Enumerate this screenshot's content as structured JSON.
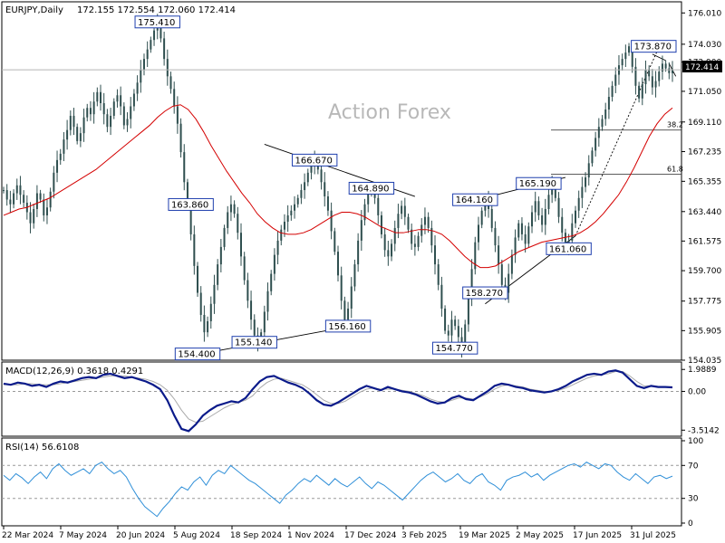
{
  "header": {
    "symbol": "EURJPY,Daily",
    "ohlc": "172.155 172.554 172.060 172.414"
  },
  "watermark": "Action Forex",
  "chart_data": [
    {
      "type": "line",
      "panel": "price",
      "ylim": [
        154.035,
        176.6
      ],
      "y_ticks": [
        "176.010",
        "174.030",
        "172.900",
        "171.050",
        "169.110",
        "167.235",
        "165.355",
        "163.440",
        "161.575",
        "159.700",
        "157.775",
        "155.905",
        "154.035"
      ],
      "current_price": "172.414",
      "x_labels": [
        "22 Mar 2024",
        "7 May 2024",
        "20 Jun 2024",
        "5 Aug 2024",
        "18 Sep 2024",
        "1 Nov 2024",
        "17 Dec 2024",
        "3 Feb 2025",
        "19 Mar 2025",
        "2 May 2025",
        "17 Jun 2025",
        "31 Jul 2025"
      ],
      "series": [
        {
          "values": [
            164.8,
            164.2,
            163.9,
            164.6,
            165.1,
            164.5,
            164.0,
            163.4,
            162.7,
            163.6,
            164.6,
            164.2,
            163.2,
            163.7,
            164.7,
            165.9,
            166.7,
            167.1,
            168.0,
            168.6,
            169.5,
            168.8,
            167.9,
            168.4,
            169.4,
            170.0,
            169.6,
            170.4,
            171.0,
            170.3,
            169.6,
            168.8,
            169.5,
            170.4,
            170.8,
            170.1,
            168.9,
            169.3,
            170.1,
            170.9,
            171.6,
            172.4,
            173.1,
            173.7,
            174.3,
            174.9,
            175.4,
            174.4,
            173.1,
            172.0,
            171.2,
            170.1,
            169.0,
            167.2,
            165.3,
            163.9,
            162.0,
            160.0,
            158.3,
            156.9,
            155.8,
            156.5,
            157.6,
            158.8,
            160.1,
            161.2,
            162.4,
            163.4,
            163.9,
            163.3,
            162.1,
            160.6,
            159.1,
            157.8,
            156.6,
            155.6,
            155.1,
            155.8,
            157.1,
            158.4,
            159.5,
            160.7,
            161.6,
            162.3,
            162.8,
            163.2,
            163.5,
            163.9,
            164.3,
            164.8,
            165.3,
            165.9,
            166.4,
            166.7,
            166.1,
            165.3,
            164.4,
            163.5,
            162.2,
            160.9,
            159.4,
            157.8,
            156.6,
            157.3,
            158.7,
            160.1,
            161.6,
            162.9,
            163.9,
            164.6,
            164.9,
            164.3,
            163.2,
            162.0,
            161.0,
            160.6,
            161.4,
            162.4,
            163.3,
            163.8,
            163.1,
            162.3,
            161.4,
            161.2,
            161.9,
            162.6,
            163.1,
            162.4,
            161.3,
            160.1,
            158.8,
            157.3,
            155.9,
            155.6,
            156.6,
            156.2,
            155.5,
            154.8,
            156.3,
            158.1,
            159.8,
            161.5,
            162.6,
            163.5,
            164.2,
            163.6,
            162.4,
            161.3,
            160.1,
            158.8,
            158.3,
            159.5,
            160.7,
            161.8,
            162.7,
            162.0,
            161.4,
            162.5,
            163.4,
            164.1,
            163.2,
            162.6,
            163.6,
            164.5,
            165.2,
            164.3,
            163.1,
            162.1,
            161.1,
            161.6,
            162.7,
            163.5,
            164.3,
            165.0,
            165.6,
            166.5,
            167.3,
            168.1,
            168.8,
            169.3,
            169.9,
            170.7,
            171.4,
            172.1,
            172.7,
            173.1,
            173.5,
            173.9,
            172.6,
            171.4,
            170.6,
            171.5,
            172.4,
            172.0,
            171.3,
            171.7,
            172.3,
            172.8,
            172.5,
            172.2,
            172.414
          ]
        },
        {
          "name": "MA",
          "values": [
            163.2,
            163.4,
            163.6,
            163.7,
            163.9,
            164.1,
            164.3,
            164.6,
            164.9,
            165.2,
            165.5,
            165.8,
            166.1,
            166.5,
            166.9,
            167.3,
            167.7,
            168.1,
            168.5,
            168.9,
            169.4,
            169.8,
            170.1,
            170.2,
            169.9,
            169.3,
            168.5,
            167.6,
            166.8,
            166.0,
            165.3,
            164.6,
            164.0,
            163.3,
            162.8,
            162.4,
            162.1,
            162.0,
            162.0,
            162.1,
            162.3,
            162.6,
            162.9,
            163.2,
            163.4,
            163.4,
            163.3,
            163.1,
            162.8,
            162.5,
            162.3,
            162.1,
            162.1,
            162.2,
            162.3,
            162.3,
            162.2,
            162.0,
            161.6,
            161.1,
            160.6,
            160.2,
            159.9,
            159.9,
            160.0,
            160.3,
            160.6,
            160.9,
            161.1,
            161.3,
            161.5,
            161.6,
            161.7,
            161.8,
            161.9,
            162.1,
            162.4,
            162.8,
            163.3,
            163.9,
            164.5,
            165.3,
            166.2,
            167.2,
            168.2,
            169.0,
            169.6,
            170.0
          ]
        }
      ]
    },
    {
      "type": "line",
      "panel": "macd",
      "title": "MACD(12,26,9) 0.3618 0.4291",
      "ylim": [
        -3.9,
        2.5
      ],
      "y_ticks": [
        "1.9889",
        "0.00",
        "-3.5142"
      ],
      "series": [
        {
          "name": "MACD",
          "values": [
            0.7,
            0.6,
            0.8,
            0.7,
            0.5,
            0.6,
            0.4,
            0.7,
            0.9,
            0.8,
            1.0,
            1.2,
            1.3,
            1.2,
            1.5,
            1.6,
            1.4,
            1.2,
            1.3,
            1.1,
            0.9,
            0.6,
            0.2,
            -0.8,
            -2.2,
            -3.4,
            -3.6,
            -3.0,
            -2.2,
            -1.7,
            -1.3,
            -1.1,
            -0.9,
            -1.0,
            -0.6,
            0.2,
            0.9,
            1.3,
            1.4,
            1.1,
            0.8,
            0.6,
            0.3,
            -0.2,
            -0.8,
            -1.2,
            -1.3,
            -1.0,
            -0.6,
            -0.2,
            0.2,
            0.5,
            0.3,
            0.1,
            0.4,
            0.2,
            0.0,
            -0.1,
            -0.3,
            -0.6,
            -0.9,
            -1.1,
            -1.0,
            -0.6,
            -0.4,
            -0.7,
            -0.8,
            -0.4,
            0.0,
            0.5,
            0.7,
            0.6,
            0.4,
            0.3,
            0.1,
            0.0,
            -0.1,
            0.0,
            0.2,
            0.5,
            0.9,
            1.2,
            1.5,
            1.6,
            1.5,
            1.8,
            1.9,
            1.7,
            1.1,
            0.5,
            0.3,
            0.5,
            0.4,
            0.4,
            0.36
          ]
        },
        {
          "name": "Signal",
          "values": [
            0.6,
            0.6,
            0.6,
            0.7,
            0.7,
            0.6,
            0.6,
            0.6,
            0.7,
            0.8,
            0.9,
            1.0,
            1.1,
            1.2,
            1.3,
            1.4,
            1.4,
            1.4,
            1.3,
            1.2,
            1.1,
            0.9,
            0.6,
            0.1,
            -0.7,
            -1.7,
            -2.5,
            -2.8,
            -2.7,
            -2.3,
            -1.9,
            -1.5,
            -1.2,
            -1.0,
            -0.8,
            -0.4,
            0.3,
            0.8,
            1.1,
            1.2,
            1.0,
            0.8,
            0.6,
            0.2,
            -0.3,
            -0.8,
            -1.1,
            -1.1,
            -0.9,
            -0.5,
            -0.1,
            0.2,
            0.3,
            0.2,
            0.2,
            0.2,
            0.1,
            0.0,
            -0.2,
            -0.4,
            -0.7,
            -0.9,
            -1.0,
            -0.8,
            -0.6,
            -0.6,
            -0.7,
            -0.5,
            -0.2,
            0.2,
            0.5,
            0.6,
            0.5,
            0.4,
            0.2,
            0.1,
            0.0,
            0.0,
            0.1,
            0.3,
            0.6,
            0.9,
            1.2,
            1.4,
            1.5,
            1.6,
            1.8,
            1.8,
            1.4,
            0.9,
            0.5,
            0.5,
            0.45,
            0.43,
            0.43
          ]
        }
      ]
    },
    {
      "type": "line",
      "panel": "rsi",
      "title": "RSI(14) 56.6108",
      "ylim": [
        0,
        100
      ],
      "y_ticks": [
        "100",
        "70",
        "30",
        "0"
      ],
      "levels": [
        70,
        30
      ],
      "series": [
        {
          "name": "RSI",
          "values": [
            58,
            52,
            60,
            55,
            48,
            56,
            62,
            54,
            66,
            72,
            64,
            58,
            62,
            66,
            60,
            70,
            74,
            66,
            60,
            64,
            56,
            42,
            30,
            20,
            14,
            8,
            18,
            26,
            36,
            44,
            40,
            50,
            56,
            46,
            58,
            64,
            60,
            70,
            64,
            58,
            52,
            48,
            42,
            36,
            30,
            24,
            34,
            40,
            48,
            54,
            50,
            58,
            52,
            46,
            54,
            48,
            44,
            50,
            56,
            48,
            42,
            50,
            46,
            40,
            34,
            28,
            36,
            44,
            52,
            58,
            62,
            56,
            50,
            54,
            60,
            52,
            48,
            56,
            60,
            50,
            46,
            40,
            52,
            56,
            58,
            62,
            56,
            60,
            52,
            58,
            62,
            66,
            70,
            72,
            68,
            74,
            70,
            66,
            72,
            70,
            62,
            56,
            52,
            60,
            54,
            48,
            56,
            58,
            54,
            57
          ]
        }
      ]
    }
  ],
  "annotations": [
    {
      "label": "175.410",
      "date_idx": 46,
      "price": 175.41
    },
    {
      "label": "163.860",
      "date_idx": 56,
      "price": 163.86
    },
    {
      "label": "154.400",
      "date_idx": 58,
      "price": 154.4
    },
    {
      "label": "155.140",
      "date_idx": 75,
      "price": 155.14
    },
    {
      "label": "166.670",
      "date_idx": 93,
      "price": 166.67
    },
    {
      "label": "164.890",
      "date_idx": 110,
      "price": 164.89
    },
    {
      "label": "156.160",
      "date_idx": 103,
      "price": 156.16
    },
    {
      "label": "164.160",
      "date_idx": 141,
      "price": 164.16
    },
    {
      "label": "154.770",
      "date_idx": 135,
      "price": 154.77
    },
    {
      "label": "158.270",
      "date_idx": 144,
      "price": 158.27
    },
    {
      "label": "165.190",
      "date_idx": 160,
      "price": 165.19
    },
    {
      "label": "161.060",
      "date_idx": 169,
      "price": 161.06
    },
    {
      "label": "173.870",
      "date_idx": 196,
      "price": 173.87
    }
  ],
  "fib_levels": [
    {
      "label": "38.2",
      "price": 168.6
    },
    {
      "label": "61.8",
      "price": 165.8
    }
  ]
}
